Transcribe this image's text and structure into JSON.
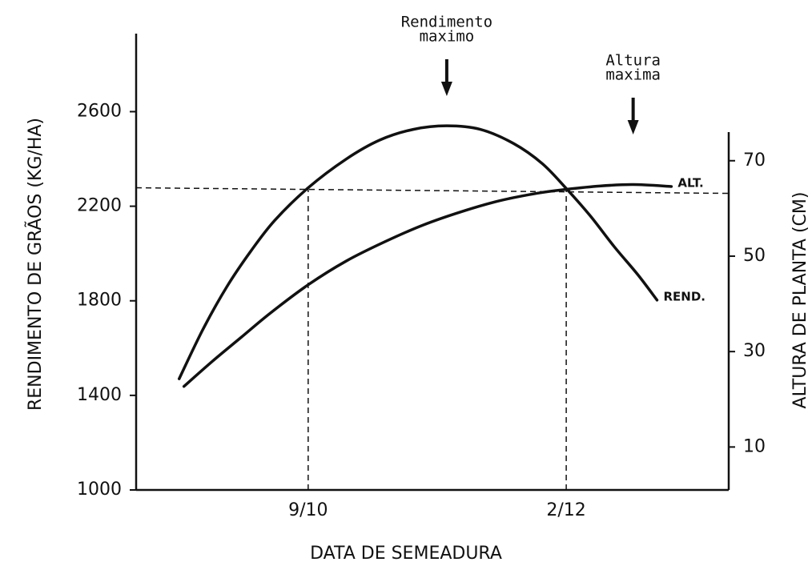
{
  "chart_data": {
    "type": "line",
    "x_label": "DATA DE SEMEADURA",
    "y_label": "RENDIMENTO DE GRÃOS (KG/HA)",
    "y2_label": "ALTURA DE PLANTA (CM)",
    "xlim": [
      246,
      370
    ],
    "xticks": [
      {
        "value": 282,
        "label": "9/10"
      },
      {
        "value": 336,
        "label": "2/12"
      }
    ],
    "ylim": [
      1000,
      2930
    ],
    "yticks": [
      {
        "value": 1000,
        "label": "1000"
      },
      1400,
      1800,
      2200,
      2600
    ],
    "y2lim": [
      1,
      76
    ],
    "y2ticks": [
      10,
      30,
      50,
      70
    ],
    "series": [
      {
        "name": "REND.",
        "color": "#111111",
        "x": [
          255,
          260,
          265,
          270,
          275,
          282,
          290,
          297,
          304,
          311,
          318,
          325,
          331,
          336,
          341,
          346,
          351,
          355
        ],
        "values": [
          1470,
          1680,
          1860,
          2010,
          2140,
          2278,
          2400,
          2480,
          2525,
          2540,
          2525,
          2465,
          2380,
          2275,
          2160,
          2030,
          1910,
          1803
        ]
      },
      {
        "name": "ALT.",
        "color": "#111111",
        "axis": "y2",
        "x": [
          256,
          262,
          268,
          274,
          282,
          290,
          298,
          306,
          314,
          322,
          330,
          336,
          343,
          350,
          358
        ],
        "values": [
          22.7,
          28,
          33,
          38,
          44,
          49,
          53,
          56.5,
          59.3,
          61.6,
          63.2,
          64,
          64.7,
          65,
          64.6
        ]
      }
    ],
    "annotations": [
      {
        "lines": [
          "Rendimento",
          "maximo"
        ],
        "x": 311
      },
      {
        "lines": [
          "Altura",
          "maxima"
        ],
        "x": 350
      }
    ]
  }
}
